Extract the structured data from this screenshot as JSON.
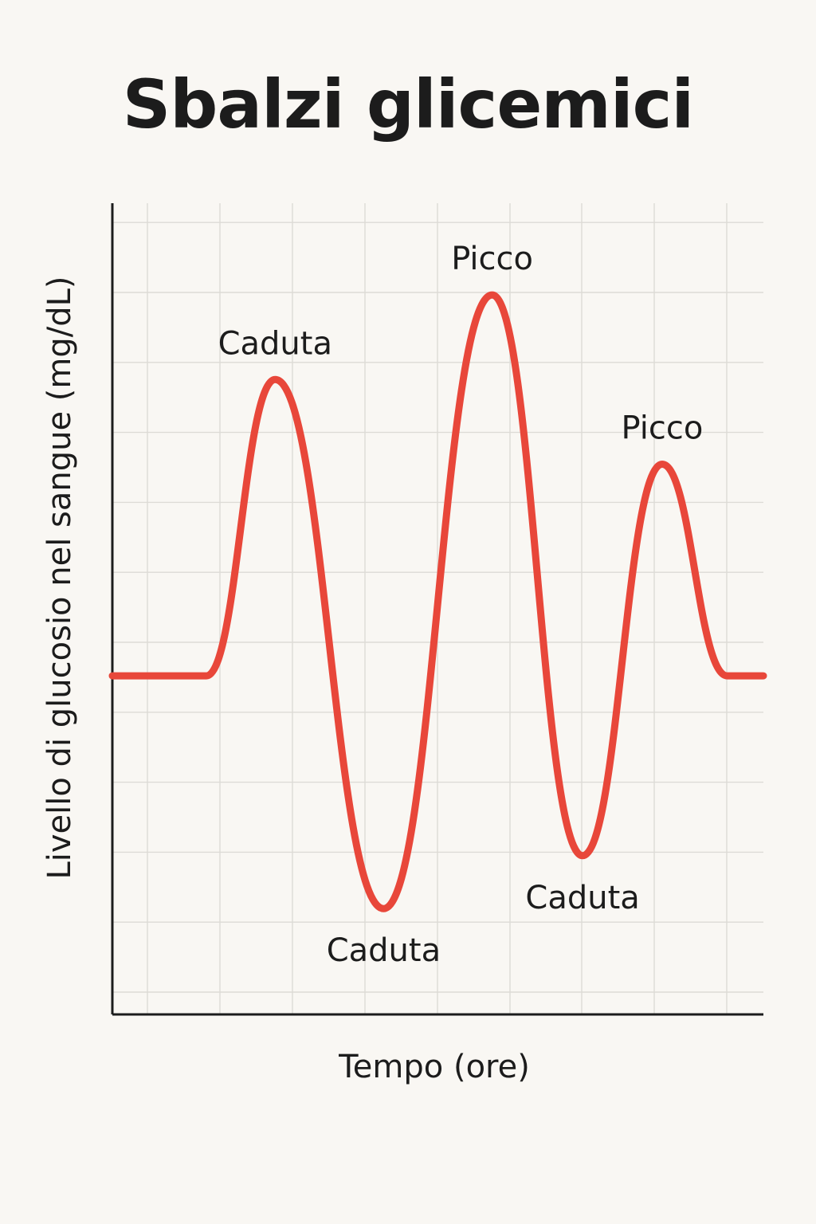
{
  "chart_data": {
    "type": "line",
    "title": "Sbalzi glicemici",
    "xlabel": "Tempo (ore)",
    "ylabel": "Livello di glucosio nel sangue (mg/dL)",
    "grid": true,
    "legend": "none",
    "xlim": [
      0,
      9
    ],
    "ylim": [
      0,
      11.5
    ],
    "series": [
      {
        "color": "#e8473a",
        "points": [
          [
            0,
            4.8
          ],
          [
            1.3,
            4.8
          ],
          [
            2.25,
            9.0
          ],
          [
            3.75,
            1.5
          ],
          [
            5.25,
            10.2
          ],
          [
            6.5,
            2.25
          ],
          [
            7.6,
            7.8
          ],
          [
            8.5,
            4.8
          ],
          [
            9,
            4.8
          ]
        ]
      }
    ],
    "annotations": [
      {
        "text": "Caduta",
        "x": 2.25,
        "y": 9.0,
        "position": "above"
      },
      {
        "text": "Picco",
        "x": 5.25,
        "y": 10.2,
        "position": "above"
      },
      {
        "text": "Picco",
        "x": 7.6,
        "y": 7.8,
        "position": "above"
      },
      {
        "text": "Caduta",
        "x": 3.75,
        "y": 1.5,
        "position": "below"
      },
      {
        "text": "Caduta",
        "x": 6.5,
        "y": 2.25,
        "position": "below"
      }
    ]
  }
}
